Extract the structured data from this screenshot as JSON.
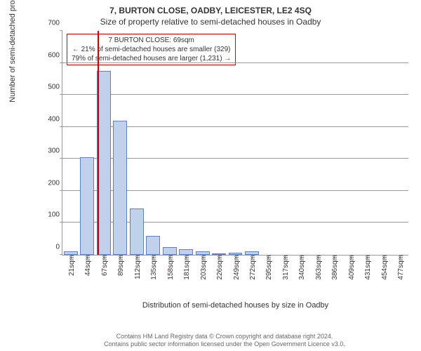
{
  "header": {
    "address": "7, BURTON CLOSE, OADBY, LEICESTER, LE2 4SQ",
    "subtitle": "Size of property relative to semi-detached houses in Oadby"
  },
  "chart": {
    "type": "histogram",
    "ylabel": "Number of semi-detached properties",
    "xlabel": "Distribution of semi-detached houses by size in Oadby",
    "ylim_max": 700,
    "ytick_step": 100,
    "bar_fill": "#c2d1eb",
    "bar_stroke": "#6080c0",
    "marker_color": "#cc0000",
    "marker_position_pct": 10.2,
    "grid_color": "#999999",
    "background": "#ffffff",
    "categories": [
      "21sqm",
      "44sqm",
      "67sqm",
      "89sqm",
      "112sqm",
      "135sqm",
      "158sqm",
      "181sqm",
      "203sqm",
      "226sqm",
      "249sqm",
      "272sqm",
      "295sqm",
      "317sqm",
      "340sqm",
      "363sqm",
      "386sqm",
      "409sqm",
      "431sqm",
      "454sqm",
      "477sqm"
    ],
    "values": [
      10,
      305,
      575,
      420,
      145,
      60,
      25,
      18,
      12,
      4,
      6,
      10,
      0,
      0,
      0,
      0,
      0,
      0,
      0,
      0,
      0
    ]
  },
  "info_box": {
    "border_color": "#cc0000",
    "line1": "7 BURTON CLOSE: 69sqm",
    "line2": "← 21% of semi-detached houses are smaller (329)",
    "line3": "79% of semi-detached houses are larger (1,231) →"
  },
  "footer": {
    "line1": "Contains HM Land Registry data © Crown copyright and database right 2024.",
    "line2": "Contains public sector information licensed under the Open Government Licence v3.0."
  }
}
